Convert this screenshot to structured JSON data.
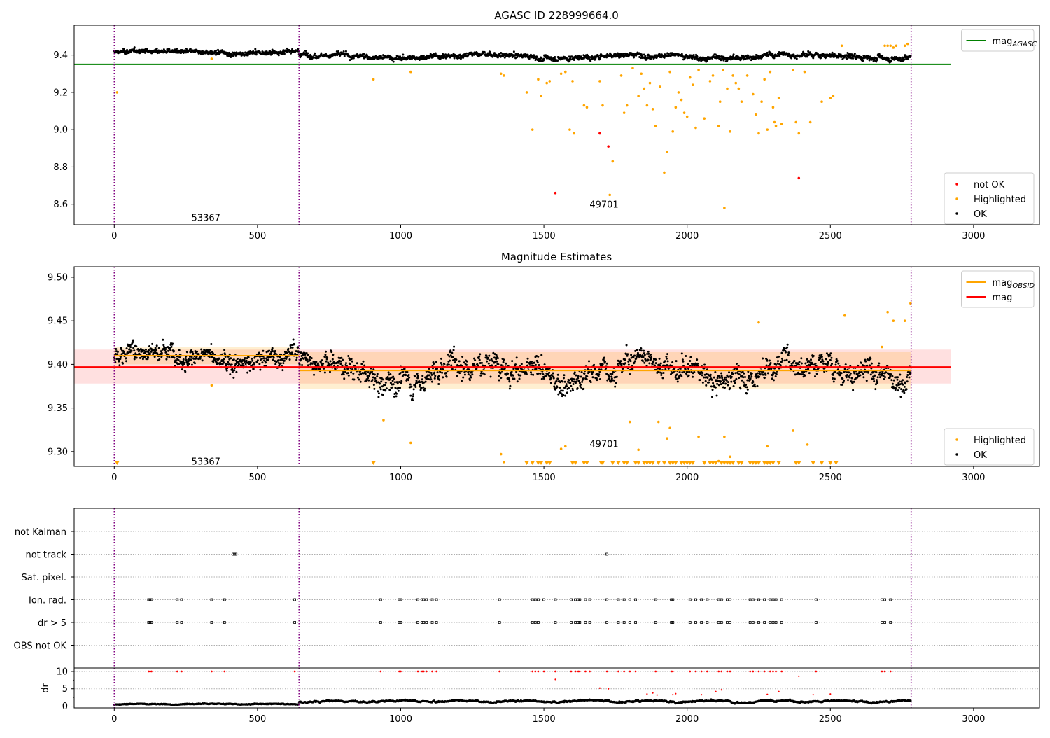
{
  "colors": {
    "ok": "#000000",
    "highlighted": "#ffa500",
    "not_ok": "#ff0000",
    "agasc_line": "#008000",
    "obsid_line": "#ffa500",
    "mag_line": "#ff0000",
    "obs_boundary": "#800080",
    "flag_grid": "#b0b0b0"
  },
  "chart_data": [
    {
      "type": "scatter",
      "title": "AGASC ID 228999664.0",
      "xlim": [
        -140,
        3230
      ],
      "ylim": [
        8.49,
        9.56
      ],
      "xticks": [
        0,
        500,
        1000,
        1500,
        2000,
        2500,
        3000
      ],
      "yticks": [
        8.6,
        8.8,
        9.0,
        9.2,
        9.4
      ],
      "ytick_labels": [
        "8.6",
        "8.8",
        "9.0",
        "9.2",
        "9.4"
      ],
      "legend_top": {
        "position": "top-right",
        "entries": [
          {
            "label": "mag",
            "sub": "AGASC",
            "color": "#008000",
            "kind": "line"
          }
        ]
      },
      "legend_bottom": {
        "position": "bottom-right",
        "entries": [
          {
            "label": "not OK",
            "color": "#ff0000",
            "kind": "point"
          },
          {
            "label": "Highlighted",
            "color": "#ffa500",
            "kind": "point"
          },
          {
            "label": "OK",
            "color": "#000000",
            "kind": "point"
          }
        ]
      },
      "hlines": [
        {
          "name": "mag_AGASC",
          "y": 9.35,
          "x": [
            -140,
            2920
          ],
          "color": "#008000"
        }
      ],
      "obs_boundaries": [
        0,
        645,
        2782
      ],
      "obs_labels": [
        {
          "text": "53367",
          "x": 320,
          "y": 8.53
        },
        {
          "text": "49701",
          "x": 1710,
          "y": 8.6
        }
      ],
      "ok_segments": [
        {
          "x0": 0,
          "x1": 645,
          "base": 9.415,
          "amp": 0.012,
          "noise": 0.012,
          "n": 520
        },
        {
          "x0": 645,
          "x1": 2782,
          "base": 9.395,
          "amp": 0.018,
          "noise": 0.014,
          "n": 1600
        }
      ],
      "highlighted_points": [
        [
          10,
          9.2
        ],
        [
          340,
          9.38
        ],
        [
          905,
          9.27
        ],
        [
          1035,
          9.31
        ],
        [
          1350,
          9.3
        ],
        [
          1360,
          9.29
        ],
        [
          1440,
          9.2
        ],
        [
          1460,
          9.0
        ],
        [
          1480,
          9.27
        ],
        [
          1490,
          9.18
        ],
        [
          1510,
          9.25
        ],
        [
          1520,
          9.26
        ],
        [
          1560,
          9.3
        ],
        [
          1575,
          9.31
        ],
        [
          1590,
          9.0
        ],
        [
          1600,
          9.26
        ],
        [
          1605,
          8.98
        ],
        [
          1640,
          9.13
        ],
        [
          1650,
          9.12
        ],
        [
          1695,
          9.26
        ],
        [
          1705,
          9.13
        ],
        [
          1730,
          8.65
        ],
        [
          1740,
          8.83
        ],
        [
          1770,
          9.29
        ],
        [
          1780,
          9.09
        ],
        [
          1790,
          9.13
        ],
        [
          1810,
          9.33
        ],
        [
          1830,
          9.18
        ],
        [
          1840,
          9.3
        ],
        [
          1850,
          9.22
        ],
        [
          1860,
          9.13
        ],
        [
          1870,
          9.25
        ],
        [
          1880,
          9.11
        ],
        [
          1890,
          9.02
        ],
        [
          1905,
          9.23
        ],
        [
          1920,
          8.77
        ],
        [
          1930,
          8.88
        ],
        [
          1940,
          9.31
        ],
        [
          1950,
          8.99
        ],
        [
          1960,
          9.12
        ],
        [
          1970,
          9.2
        ],
        [
          1980,
          9.16
        ],
        [
          1990,
          9.09
        ],
        [
          2000,
          9.07
        ],
        [
          2010,
          9.28
        ],
        [
          2020,
          9.24
        ],
        [
          2030,
          9.01
        ],
        [
          2040,
          9.32
        ],
        [
          2060,
          9.06
        ],
        [
          2080,
          9.26
        ],
        [
          2090,
          9.29
        ],
        [
          2110,
          9.02
        ],
        [
          2115,
          9.15
        ],
        [
          2125,
          9.32
        ],
        [
          2130,
          8.58
        ],
        [
          2140,
          9.22
        ],
        [
          2150,
          8.99
        ],
        [
          2160,
          9.29
        ],
        [
          2170,
          9.25
        ],
        [
          2180,
          9.22
        ],
        [
          2190,
          9.15
        ],
        [
          2210,
          9.29
        ],
        [
          2230,
          9.19
        ],
        [
          2240,
          9.08
        ],
        [
          2250,
          8.98
        ],
        [
          2260,
          9.15
        ],
        [
          2270,
          9.27
        ],
        [
          2280,
          9.0
        ],
        [
          2290,
          9.31
        ],
        [
          2300,
          9.12
        ],
        [
          2305,
          9.04
        ],
        [
          2310,
          9.02
        ],
        [
          2320,
          9.17
        ],
        [
          2330,
          9.03
        ],
        [
          2370,
          9.32
        ],
        [
          2380,
          9.04
        ],
        [
          2390,
          8.98
        ],
        [
          2410,
          9.31
        ],
        [
          2430,
          9.04
        ],
        [
          2470,
          9.15
        ],
        [
          2500,
          9.17
        ],
        [
          2510,
          9.18
        ],
        [
          2540,
          9.45
        ],
        [
          2690,
          9.45
        ],
        [
          2700,
          9.45
        ],
        [
          2710,
          9.45
        ],
        [
          2720,
          9.44
        ],
        [
          2730,
          9.45
        ],
        [
          2760,
          9.45
        ],
        [
          2770,
          9.46
        ]
      ],
      "not_ok_points": [
        [
          1540,
          8.66
        ],
        [
          1695,
          8.98
        ],
        [
          1725,
          8.91
        ],
        [
          2390,
          8.74
        ]
      ]
    },
    {
      "type": "scatter",
      "title": "Magnitude Estimates",
      "xlim": [
        -140,
        3230
      ],
      "ylim": [
        9.283,
        9.512
      ],
      "xticks": [
        0,
        500,
        1000,
        1500,
        2000,
        2500,
        3000
      ],
      "yticks": [
        9.3,
        9.35,
        9.4,
        9.45,
        9.5
      ],
      "ytick_labels": [
        "9.30",
        "9.35",
        "9.40",
        "9.45",
        "9.50"
      ],
      "legend_top": {
        "position": "top-right",
        "entries": [
          {
            "label": "mag",
            "sub": "OBSID",
            "color": "#ffa500",
            "kind": "line"
          },
          {
            "label": "mag",
            "sub": "",
            "color": "#ff0000",
            "kind": "line"
          }
        ]
      },
      "legend_bottom": {
        "position": "bottom-right",
        "entries": [
          {
            "label": "Highlighted",
            "color": "#ffa500",
            "kind": "point"
          },
          {
            "label": "OK",
            "color": "#000000",
            "kind": "point"
          }
        ]
      },
      "hlines": [
        {
          "name": "mag",
          "y": 9.397,
          "x": [
            -140,
            2920
          ],
          "color": "#ff0000"
        },
        {
          "name": "mag_OBSID_1",
          "y": 9.41,
          "x": [
            0,
            645
          ],
          "color": "#ffa500"
        },
        {
          "name": "mag_OBSID_2",
          "y": 9.393,
          "x": [
            645,
            2782
          ],
          "color": "#ffa500"
        }
      ],
      "bands": [
        {
          "x": [
            -140,
            2920
          ],
          "y": [
            9.378,
            9.417
          ],
          "color": "#ff0000",
          "opacity": 0.12
        },
        {
          "x": [
            0,
            645
          ],
          "y": [
            9.4,
            9.42
          ],
          "color": "#ffa500",
          "opacity": 0.18
        },
        {
          "x": [
            645,
            2782
          ],
          "y": [
            9.372,
            9.414
          ],
          "color": "#ffa500",
          "opacity": 0.18
        }
      ],
      "obs_boundaries": [
        0,
        645,
        2782
      ],
      "obs_labels": [
        {
          "text": "53367",
          "x": 320,
          "y": 9.289
        },
        {
          "text": "49701",
          "x": 1710,
          "y": 9.309
        }
      ],
      "ok_segments": [
        {
          "x0": 0,
          "x1": 645,
          "base": 9.41,
          "amp": 0.012,
          "noise": 0.011,
          "n": 520
        },
        {
          "x0": 645,
          "x1": 2782,
          "base": 9.393,
          "amp": 0.02,
          "noise": 0.012,
          "n": 1600
        }
      ],
      "highlighted_points": [
        [
          340,
          9.376
        ],
        [
          940,
          9.336
        ],
        [
          1035,
          9.31
        ],
        [
          1350,
          9.297
        ],
        [
          1360,
          9.288
        ],
        [
          1560,
          9.303
        ],
        [
          1575,
          9.306
        ],
        [
          1800,
          9.334
        ],
        [
          1830,
          9.302
        ],
        [
          1900,
          9.334
        ],
        [
          1930,
          9.315
        ],
        [
          1940,
          9.327
        ],
        [
          2040,
          9.317
        ],
        [
          2110,
          9.289
        ],
        [
          2130,
          9.317
        ],
        [
          2150,
          9.294
        ],
        [
          2250,
          9.448
        ],
        [
          2280,
          9.306
        ],
        [
          2370,
          9.324
        ],
        [
          2420,
          9.308
        ],
        [
          2550,
          9.456
        ],
        [
          2680,
          9.42
        ],
        [
          2700,
          9.46
        ],
        [
          2720,
          9.45
        ],
        [
          2760,
          9.45
        ],
        [
          2780,
          9.47
        ]
      ],
      "clipped_markers": [
        10,
        905,
        1440,
        1460,
        1480,
        1490,
        1510,
        1520,
        1600,
        1610,
        1640,
        1650,
        1700,
        1705,
        1740,
        1760,
        1780,
        1790,
        1820,
        1830,
        1850,
        1860,
        1870,
        1880,
        1900,
        1920,
        1940,
        1950,
        1960,
        1980,
        1990,
        2000,
        2010,
        2020,
        2060,
        2080,
        2090,
        2100,
        2120,
        2130,
        2140,
        2150,
        2160,
        2180,
        2190,
        2220,
        2230,
        2240,
        2250,
        2270,
        2280,
        2290,
        2300,
        2320,
        2380,
        2390,
        2440,
        2470,
        2500,
        2520
      ]
    },
    {
      "type": "scatter",
      "flag_labels": [
        "not Kalman",
        "not track",
        "Sat. pixel.",
        "Ion. rad.",
        "dr > 5",
        "OBS not OK"
      ],
      "flag_points": {
        "not track": [
          415,
          420,
          425,
          1720
        ],
        "Ion. rad.": [
          120,
          125,
          130,
          220,
          235,
          340,
          385,
          630,
          930,
          995,
          1000,
          1060,
          1075,
          1080,
          1090,
          1110,
          1125,
          1345,
          1460,
          1470,
          1480,
          1500,
          1540,
          1595,
          1610,
          1620,
          1625,
          1645,
          1660,
          1720,
          1760,
          1780,
          1800,
          1820,
          1890,
          1945,
          1950,
          2010,
          2030,
          2050,
          2070,
          2110,
          2120,
          2140,
          2150,
          2220,
          2230,
          2250,
          2270,
          2290,
          2300,
          2310,
          2330,
          2450,
          2680,
          2690,
          2710
        ],
        "dr > 5": [
          120,
          125,
          130,
          220,
          235,
          340,
          385,
          630,
          930,
          995,
          1000,
          1060,
          1075,
          1080,
          1090,
          1110,
          1125,
          1345,
          1460,
          1470,
          1480,
          1540,
          1595,
          1610,
          1620,
          1625,
          1645,
          1660,
          1720,
          1760,
          1780,
          1800,
          1820,
          1890,
          1945,
          1950,
          2010,
          2030,
          2050,
          2070,
          2110,
          2120,
          2140,
          2150,
          2220,
          2230,
          2250,
          2270,
          2290,
          2300,
          2310,
          2330,
          2450,
          2680,
          2690,
          2710
        ]
      },
      "dr_ylabel": "dr",
      "dr_yticks": [
        0,
        5,
        10
      ],
      "dr_ylim": [
        -0.5,
        11
      ],
      "xticks": [
        0,
        500,
        1000,
        1500,
        2000,
        2500,
        3000
      ],
      "xlim": [
        -140,
        3230
      ],
      "dr_red_points": [
        [
          1540,
          7.7
        ],
        [
          1695,
          5.2
        ],
        [
          1725,
          5.0
        ],
        [
          1860,
          3.5
        ],
        [
          1880,
          3.8
        ],
        [
          1895,
          3.2
        ],
        [
          1950,
          3.3
        ],
        [
          1960,
          3.6
        ],
        [
          2050,
          3.3
        ],
        [
          2100,
          4.2
        ],
        [
          2120,
          4.7
        ],
        [
          2280,
          3.4
        ],
        [
          2320,
          4.2
        ],
        [
          2390,
          8.6
        ],
        [
          2440,
          3.3
        ],
        [
          2500,
          3.5
        ]
      ],
      "dr_segments": [
        {
          "x0": 0,
          "x1": 645,
          "base": 0.4,
          "amp": 0.2,
          "noise": 0.2,
          "n": 480
        },
        {
          "x0": 645,
          "x1": 2782,
          "base": 1.0,
          "amp": 0.5,
          "noise": 0.3,
          "n": 1500
        }
      ]
    }
  ]
}
